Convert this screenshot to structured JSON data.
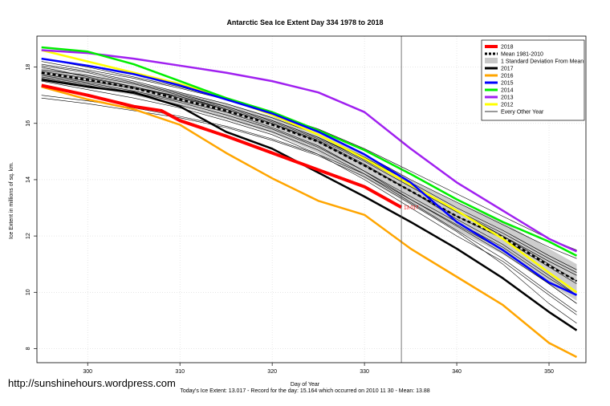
{
  "chart_data": {
    "type": "line",
    "title": "Antarctic Sea Ice Extent Day 334 1978 to 2018",
    "xlabel": "Day of Year",
    "ylabel": "Ice Extent in millions of sq. km.",
    "xlim": [
      294.5,
      354
    ],
    "ylim": [
      7.5,
      19.1
    ],
    "x_ticks": [
      300,
      310,
      320,
      330,
      340,
      350
    ],
    "y_ticks": [
      8,
      10,
      12,
      14,
      16,
      18
    ],
    "grid": true,
    "legend_position": "top-right",
    "current_day": 334,
    "current_value_label": "13.017",
    "legend": [
      {
        "label": "2018",
        "color": "#ff0000",
        "style": "line",
        "width": 4
      },
      {
        "label": "Mean 1981-2010",
        "color": "#000000",
        "style": "dashed",
        "width": 3
      },
      {
        "label": "1 Standard Deviation From Mean",
        "color": "#c8c8c8",
        "style": "band",
        "width": 8
      },
      {
        "label": "2017",
        "color": "#000000",
        "style": "line",
        "width": 3
      },
      {
        "label": "2016",
        "color": "#ffa500",
        "style": "line",
        "width": 3
      },
      {
        "label": "2015",
        "color": "#0000ff",
        "style": "line",
        "width": 3
      },
      {
        "label": "2014",
        "color": "#00ee00",
        "style": "line",
        "width": 3
      },
      {
        "label": "2013",
        "color": "#a020f0",
        "style": "line",
        "width": 3
      },
      {
        "label": "2012",
        "color": "#ffff00",
        "style": "line",
        "width": 3
      },
      {
        "label": "Every Other Year",
        "color": "#000000",
        "style": "line",
        "width": 0.8
      }
    ],
    "std_band": {
      "x": [
        295,
        300,
        305,
        310,
        315,
        320,
        325,
        330,
        335,
        340,
        345,
        350,
        353
      ],
      "upper": [
        18.0,
        17.75,
        17.45,
        17.1,
        16.7,
        16.25,
        15.65,
        14.9,
        14.0,
        13.2,
        12.5,
        11.55,
        11.0
      ],
      "lower": [
        17.6,
        17.3,
        17.0,
        16.6,
        16.15,
        15.65,
        14.95,
        14.05,
        13.1,
        12.2,
        11.35,
        10.3,
        9.7
      ]
    },
    "series": [
      {
        "name": "Mean 1981-2010",
        "color": "#000000",
        "width": 2.5,
        "dash": "4,3",
        "x": [
          295,
          300,
          305,
          310,
          315,
          320,
          325,
          330,
          335,
          340,
          345,
          350,
          353
        ],
        "y": [
          17.8,
          17.55,
          17.25,
          16.85,
          16.45,
          15.95,
          15.35,
          14.5,
          13.6,
          12.7,
          11.95,
          10.95,
          10.4
        ]
      },
      {
        "name": "2012",
        "color": "#ffff00",
        "width": 2.5,
        "x": [
          295,
          300,
          305,
          310,
          315,
          320,
          325,
          330,
          334,
          340,
          345,
          350,
          353
        ],
        "y": [
          18.6,
          18.2,
          17.8,
          17.4,
          16.9,
          16.3,
          15.6,
          14.75,
          14.0,
          12.9,
          11.9,
          10.7,
          10.0
        ]
      },
      {
        "name": "2013",
        "color": "#a020f0",
        "width": 2.5,
        "x": [
          295,
          300,
          305,
          310,
          315,
          320,
          325,
          330,
          335,
          340,
          345,
          350,
          353
        ],
        "y": [
          18.6,
          18.5,
          18.3,
          18.05,
          17.8,
          17.5,
          17.1,
          16.4,
          15.1,
          13.9,
          12.9,
          11.9,
          11.45
        ]
      },
      {
        "name": "2014",
        "color": "#00ee00",
        "width": 2.5,
        "x": [
          295,
          300,
          305,
          310,
          315,
          320,
          325,
          330,
          335,
          340,
          345,
          350,
          353
        ],
        "y": [
          18.7,
          18.55,
          18.1,
          17.5,
          16.9,
          16.4,
          15.75,
          15.05,
          14.2,
          13.3,
          12.5,
          11.8,
          11.3
        ]
      },
      {
        "name": "2015",
        "color": "#0000ff",
        "width": 2.5,
        "x": [
          295,
          300,
          305,
          310,
          315,
          320,
          325,
          330,
          335,
          340,
          345,
          350,
          353
        ],
        "y": [
          18.3,
          18.05,
          17.75,
          17.35,
          16.85,
          16.35,
          15.7,
          14.9,
          13.9,
          12.5,
          11.5,
          10.35,
          9.9
        ]
      },
      {
        "name": "2016",
        "color": "#ffa500",
        "width": 2.5,
        "x": [
          295,
          300,
          305,
          310,
          315,
          320,
          325,
          330,
          335,
          340,
          345,
          350,
          353
        ],
        "y": [
          17.3,
          16.85,
          16.5,
          15.95,
          14.95,
          14.05,
          13.25,
          12.75,
          11.55,
          10.55,
          9.55,
          8.2,
          7.7
        ]
      },
      {
        "name": "2017",
        "color": "#000000",
        "width": 2.5,
        "x": [
          295,
          300,
          305,
          310,
          315,
          320,
          325,
          330,
          335,
          340,
          345,
          350,
          353
        ],
        "y": [
          17.55,
          17.3,
          17.1,
          16.6,
          15.7,
          15.1,
          14.25,
          13.4,
          12.5,
          11.55,
          10.5,
          9.3,
          8.65
        ]
      },
      {
        "name": "2018",
        "color": "#ff0000",
        "width": 4,
        "x": [
          295,
          300,
          305,
          308,
          310,
          315,
          320,
          325,
          330,
          334
        ],
        "y": [
          17.35,
          17.0,
          16.6,
          16.45,
          16.1,
          15.55,
          14.95,
          14.35,
          13.75,
          13.017
        ]
      }
    ],
    "other_years": [
      [
        17.9,
        17.7,
        17.4,
        17.0,
        16.6,
        16.1,
        15.5,
        14.7,
        13.8,
        12.9,
        12.0,
        11.0,
        10.4
      ],
      [
        17.7,
        17.45,
        17.15,
        16.8,
        16.4,
        15.85,
        15.2,
        14.3,
        13.3,
        12.4,
        11.5,
        10.3,
        9.6
      ],
      [
        18.1,
        17.85,
        17.5,
        17.1,
        16.7,
        16.2,
        15.6,
        14.8,
        13.9,
        13.0,
        12.2,
        11.3,
        10.8
      ],
      [
        17.5,
        17.2,
        16.9,
        16.55,
        16.1,
        15.6,
        14.9,
        14.0,
        13.0,
        12.0,
        11.1,
        9.9,
        9.2
      ],
      [
        18.2,
        17.9,
        17.6,
        17.25,
        16.85,
        16.35,
        15.8,
        15.1,
        14.3,
        13.5,
        12.7,
        11.9,
        11.5
      ],
      [
        17.0,
        16.8,
        16.55,
        16.25,
        15.9,
        15.45,
        14.9,
        14.2,
        13.3,
        12.35,
        11.4,
        10.3,
        9.6
      ],
      [
        18.0,
        17.65,
        17.3,
        16.95,
        16.5,
        16.0,
        15.35,
        14.5,
        13.6,
        12.6,
        11.7,
        10.6,
        9.9
      ],
      [
        17.75,
        17.5,
        17.25,
        16.95,
        16.55,
        16.05,
        15.45,
        14.65,
        13.75,
        12.85,
        12.0,
        11.1,
        10.6
      ],
      [
        17.6,
        17.35,
        17.05,
        16.65,
        16.2,
        15.7,
        15.05,
        14.2,
        13.2,
        12.2,
        11.2,
        10.0,
        9.3
      ],
      [
        18.3,
        18.0,
        17.65,
        17.3,
        16.85,
        16.35,
        15.7,
        14.9,
        14.0,
        13.2,
        12.4,
        11.6,
        11.2
      ],
      [
        16.9,
        16.7,
        16.45,
        16.2,
        15.85,
        15.4,
        14.85,
        14.1,
        13.15,
        12.15,
        11.0,
        9.6,
        8.9
      ],
      [
        17.85,
        17.6,
        17.3,
        16.9,
        16.5,
        16.0,
        15.4,
        14.55,
        13.6,
        12.7,
        11.9,
        10.9,
        10.3
      ],
      [
        17.65,
        17.4,
        17.1,
        16.75,
        16.3,
        15.8,
        15.15,
        14.3,
        13.4,
        12.5,
        11.6,
        10.5,
        9.9
      ],
      [
        18.05,
        17.8,
        17.45,
        17.05,
        16.6,
        16.1,
        15.5,
        14.75,
        13.85,
        12.9,
        12.1,
        11.2,
        10.7
      ]
    ],
    "other_years_x": [
      295,
      300,
      305,
      310,
      315,
      320,
      325,
      330,
      335,
      340,
      345,
      350,
      353
    ]
  },
  "watermark": "http://sunshinehours.wordpress.com",
  "footnote": "Today's Ice Extent: 13.017 - Record for the day: 15.164 which occurred on 2010 11 30 - Mean: 13.88"
}
